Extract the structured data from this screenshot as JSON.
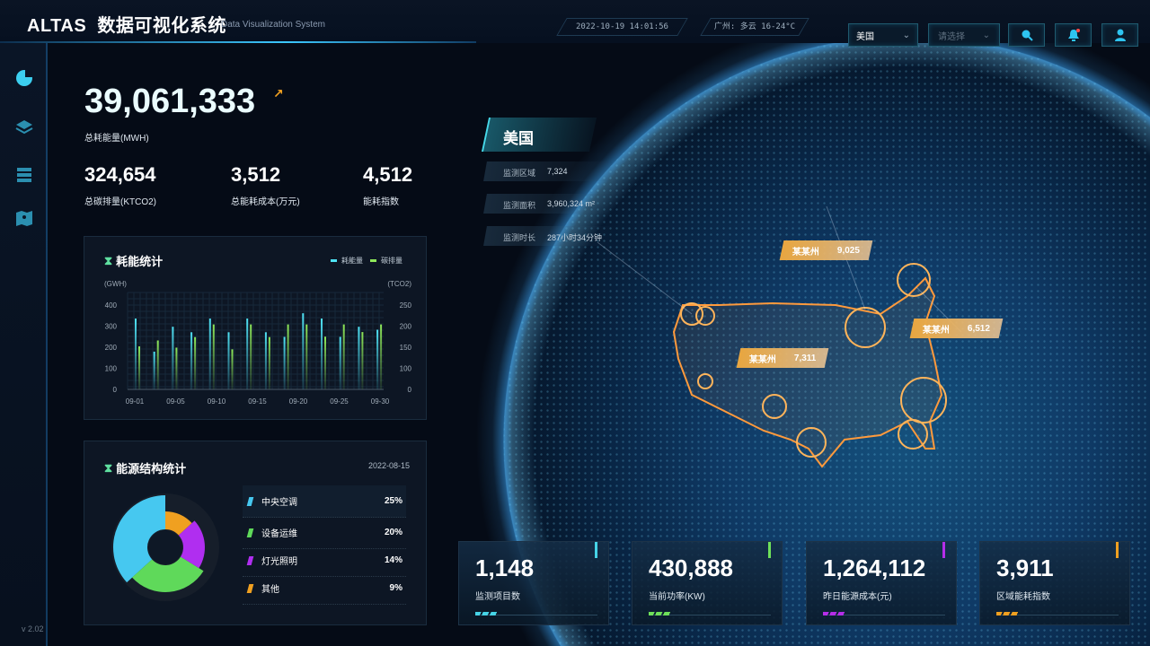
{
  "header": {
    "brand": "ALTAS",
    "title": "数据可视化系统",
    "subtitle": "Data Visualization System",
    "datetime": "2022-10-19  14:01:56",
    "weather": "广州: 多云 16-24°C",
    "country_select": "美国",
    "region_select_placeholder": "请选择"
  },
  "sidebar": {
    "items": [
      "chart-pie-icon",
      "layers-icon",
      "list-icon",
      "map-icon"
    ],
    "version": "v 2.02"
  },
  "kpis": {
    "total": {
      "value": "39,061,333",
      "label": "总耗能量(MWH)"
    },
    "items": [
      {
        "value": "324,654",
        "label": "总碳排量(KTCO2)"
      },
      {
        "value": "3,512",
        "label": "总能耗成本(万元)"
      },
      {
        "value": "4,512",
        "label": "能耗指数"
      }
    ]
  },
  "chart_data": [
    {
      "type": "bar",
      "title": "耗能统计",
      "ylabel": "(GWH)",
      "y2label": "(TCO2)",
      "ylim": [
        0,
        400
      ],
      "yticks": [
        "400",
        "300",
        "200",
        "100",
        "0"
      ],
      "y2ticks": [
        "250",
        "200",
        "150",
        "100",
        "0"
      ],
      "xticks": [
        "09-01",
        "09-05",
        "09-10",
        "09-15",
        "09-20",
        "09-25",
        "09-30"
      ],
      "series": [
        {
          "name": "耗能量",
          "axis": "left",
          "color": "#4fe3f5",
          "values": [
            336,
            179,
            297,
            271,
            336,
            271,
            336,
            271,
            249,
            361,
            336,
            249,
            297,
            283
          ]
        },
        {
          "name": "碳排量",
          "axis": "right",
          "color": "#8ee85a",
          "values": [
            152,
            166,
            149,
            174,
            204,
            145,
            204,
            174,
            204,
            204,
            175,
            204,
            186,
            204
          ]
        }
      ]
    },
    {
      "type": "pie",
      "title": "能源结构统计",
      "date": "2022-08-15",
      "slices": [
        {
          "label": "中央空调",
          "value": 25,
          "pct": "25%",
          "color": "#46c8f0"
        },
        {
          "label": "设备运维",
          "value": 20,
          "pct": "20%",
          "color": "#5fd95a"
        },
        {
          "label": "灯光照明",
          "value": 14,
          "pct": "14%",
          "color": "#b02ef0"
        },
        {
          "label": "其他",
          "value": 9,
          "pct": "9%",
          "color": "#f0a020"
        }
      ]
    }
  ],
  "region": {
    "name": "美国",
    "rows": [
      {
        "label": "监测区域",
        "value": "7,324"
      },
      {
        "label": "监测面积",
        "value": "3,960,324 m²"
      },
      {
        "label": "监测时长",
        "value": "287小时34分钟"
      }
    ]
  },
  "map_labels": [
    {
      "name": "某某州",
      "value": "9,025"
    },
    {
      "name": "某某州",
      "value": "6,512"
    },
    {
      "name": "某某州",
      "value": "7,311"
    }
  ],
  "cards": [
    {
      "value": "1,148",
      "label": "监测项目数",
      "color": "#46d3e6"
    },
    {
      "value": "430,888",
      "label": "当前功率(KW)",
      "color": "#6ee05a"
    },
    {
      "value": "1,264,112",
      "label": "昨日能源成本(元)",
      "color": "#b52ee8"
    },
    {
      "value": "3,911",
      "label": "区域能耗指数",
      "color": "#f0a020"
    }
  ]
}
